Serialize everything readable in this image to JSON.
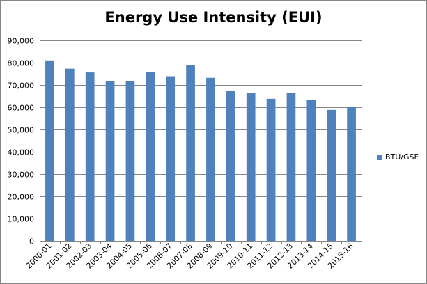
{
  "chart_data": {
    "type": "bar",
    "title": "Energy Use Intensity (EUI)",
    "xlabel": "",
    "ylabel": "",
    "categories": [
      "2000-01",
      "2001-02",
      "2002-03",
      "2003-04",
      "2004-05",
      "2005-06",
      "2006-07",
      "2007-08",
      "2008-09",
      "2009-10",
      "2010-11",
      "2011-12",
      "2012-13",
      "2013-14",
      "2014-15",
      "2015-16"
    ],
    "series": [
      {
        "name": "BTU/GSF",
        "color": "#4F81BD",
        "values": [
          81000,
          77300,
          75600,
          71600,
          71600,
          75700,
          73900,
          78800,
          73200,
          67200,
          66400,
          63800,
          66300,
          63200,
          58800,
          60000
        ]
      }
    ],
    "ylim": [
      0,
      90000
    ],
    "yticks": [
      0,
      10000,
      20000,
      30000,
      40000,
      50000,
      60000,
      70000,
      80000,
      90000
    ],
    "ytick_labels": [
      "0",
      "10,000",
      "20,000",
      "30,000",
      "40,000",
      "50,000",
      "60,000",
      "70,000",
      "80,000",
      "90,000"
    ],
    "grid": true,
    "legend_position": "right"
  }
}
